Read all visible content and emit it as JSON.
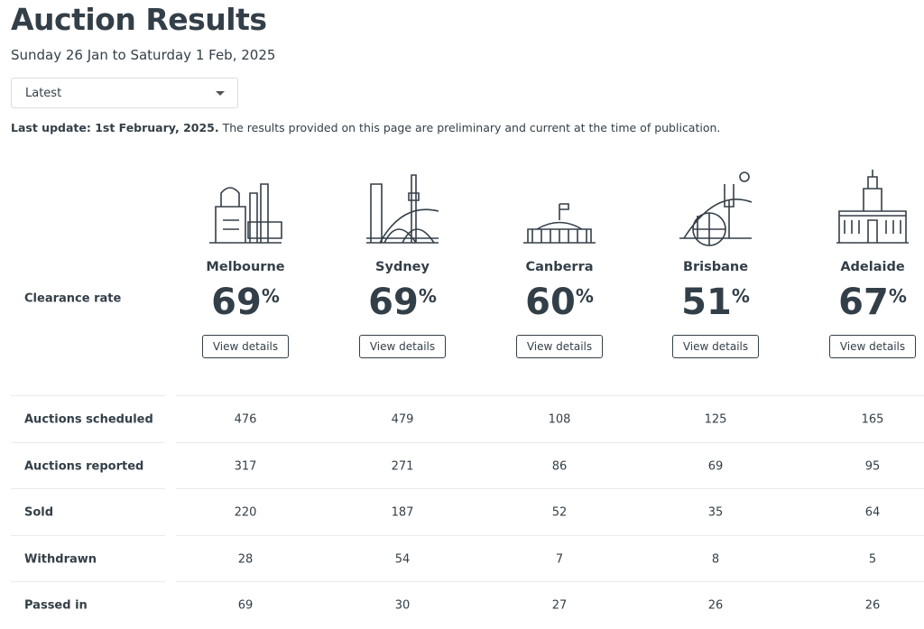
{
  "header": {
    "title": "Auction Results",
    "subtitle": "Sunday 26 Jan to Saturday 1 Feb, 2025"
  },
  "dropdown": {
    "label": "Latest"
  },
  "note": {
    "bold": "Last update: 1st February, 2025.",
    "text": " The results provided on this page are preliminary and current at the time of publication."
  },
  "clearance": {
    "label": "Clearance rate",
    "unit": "%",
    "button_label": "View details",
    "cities": [
      {
        "name": "Melbourne",
        "rate": 69
      },
      {
        "name": "Sydney",
        "rate": 69
      },
      {
        "name": "Canberra",
        "rate": 60
      },
      {
        "name": "Brisbane",
        "rate": 51
      },
      {
        "name": "Adelaide",
        "rate": 67
      }
    ]
  },
  "table": {
    "rows": [
      {
        "label": "Auctions scheduled",
        "values": [
          476,
          479,
          108,
          125,
          165
        ]
      },
      {
        "label": "Auctions reported",
        "values": [
          317,
          271,
          86,
          69,
          95
        ]
      },
      {
        "label": "Sold",
        "values": [
          220,
          187,
          52,
          35,
          64
        ]
      },
      {
        "label": "Withdrawn",
        "values": [
          28,
          54,
          7,
          8,
          5
        ]
      },
      {
        "label": "Passed in",
        "values": [
          69,
          30,
          27,
          26,
          26
        ]
      }
    ]
  }
}
